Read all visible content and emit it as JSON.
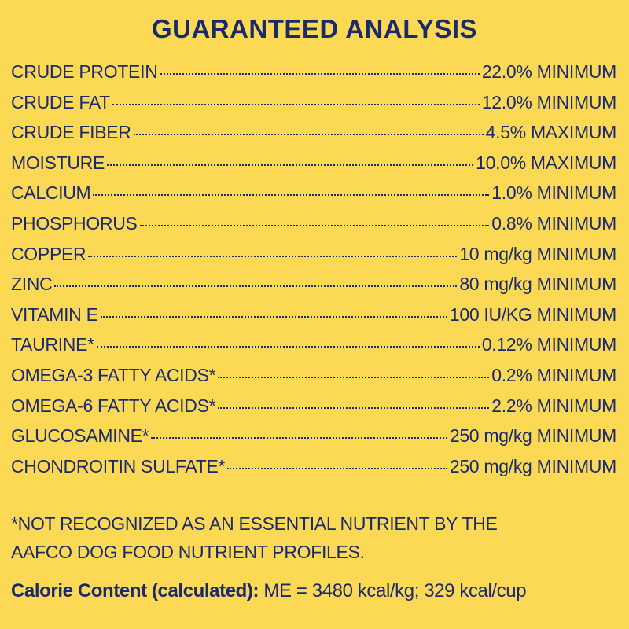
{
  "header": {
    "title": "GUARANTEED ANALYSIS"
  },
  "rows": [
    {
      "label": "CRUDE PROTEIN",
      "value": "22.0% MINIMUM"
    },
    {
      "label": "CRUDE FAT",
      "value": "12.0% MINIMUM"
    },
    {
      "label": "CRUDE FIBER",
      "value": "4.5% MAXIMUM"
    },
    {
      "label": "MOISTURE",
      "value": "10.0% MAXIMUM"
    },
    {
      "label": "CALCIUM",
      "value": "1.0% MINIMUM"
    },
    {
      "label": "PHOSPHORUS",
      "value": "0.8% MINIMUM"
    },
    {
      "label": "COPPER",
      "value": "10 mg/kg MINIMUM"
    },
    {
      "label": "ZINC",
      "value": "80 mg/kg MINIMUM"
    },
    {
      "label": "VITAMIN E",
      "value": "100 IU/KG MINIMUM"
    },
    {
      "label": "TAURINE*",
      "value": "0.12% MINIMUM"
    },
    {
      "label": "OMEGA-3 FATTY ACIDS*",
      "value": "0.2% MINIMUM"
    },
    {
      "label": "OMEGA-6 FATTY ACIDS*",
      "value": "2.2% MINIMUM"
    },
    {
      "label": "GLUCOSAMINE*",
      "value": "250 mg/kg MINIMUM"
    },
    {
      "label": "CHONDROITIN SULFATE*",
      "value": "250 mg/kg MINIMUM"
    }
  ],
  "footnote": "*NOT RECOGNIZED AS AN ESSENTIAL NUTRIENT BY THE AAFCO DOG FOOD NUTRIENT PROFILES.",
  "calorie": {
    "label": "Calorie Content (calculated):",
    "text": "ME = 3480 kcal/kg; 329 kcal/cup"
  }
}
